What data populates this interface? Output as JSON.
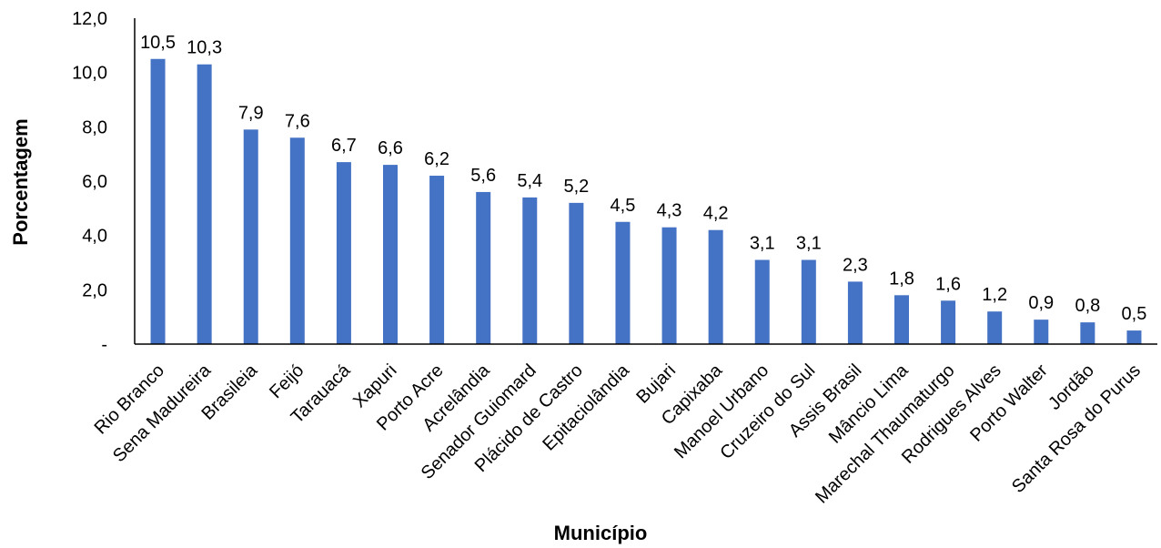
{
  "chart_data": {
    "type": "bar",
    "title": "",
    "xlabel": "Município",
    "ylabel": "Porcentagem",
    "ylim": [
      0,
      12
    ],
    "y_ticks": [
      0,
      2,
      4,
      6,
      8,
      10,
      12
    ],
    "y_tick_labels": [
      "-",
      "2,0",
      "4,0",
      "6,0",
      "8,0",
      "10,0",
      "12,0"
    ],
    "grid": false,
    "legend": "none",
    "bar_color": "#4472C4",
    "categories": [
      "Rio Branco",
      "Sena Madureira",
      "Brasileia",
      "Feijó",
      "Tarauacá",
      "Xapuri",
      "Porto Acre",
      "Acrelândia",
      "Senador Guiomard",
      "Plácido de Castro",
      "Epitaciolândia",
      "Bujari",
      "Capixaba",
      "Manoel Urbano",
      "Cruzeiro do Sul",
      "Assis Brasil",
      "Mâncio Lima",
      "Marechal Thaumaturgo",
      "Rodrigues Alves",
      "Porto Walter",
      "Jordão",
      "Santa Rosa do Purus"
    ],
    "values": [
      10.5,
      10.3,
      7.9,
      7.6,
      6.7,
      6.6,
      6.2,
      5.6,
      5.4,
      5.2,
      4.5,
      4.3,
      4.2,
      3.1,
      3.1,
      2.3,
      1.8,
      1.6,
      1.2,
      0.9,
      0.8,
      0.5
    ],
    "value_labels": [
      "10,5",
      "10,3",
      "7,9",
      "7,6",
      "6,7",
      "6,6",
      "6,2",
      "5,6",
      "5,4",
      "5,2",
      "4,5",
      "4,3",
      "4,2",
      "3,1",
      "3,1",
      "2,3",
      "1,8",
      "1,6",
      "1,2",
      "0,9",
      "0,8",
      "0,5"
    ]
  }
}
